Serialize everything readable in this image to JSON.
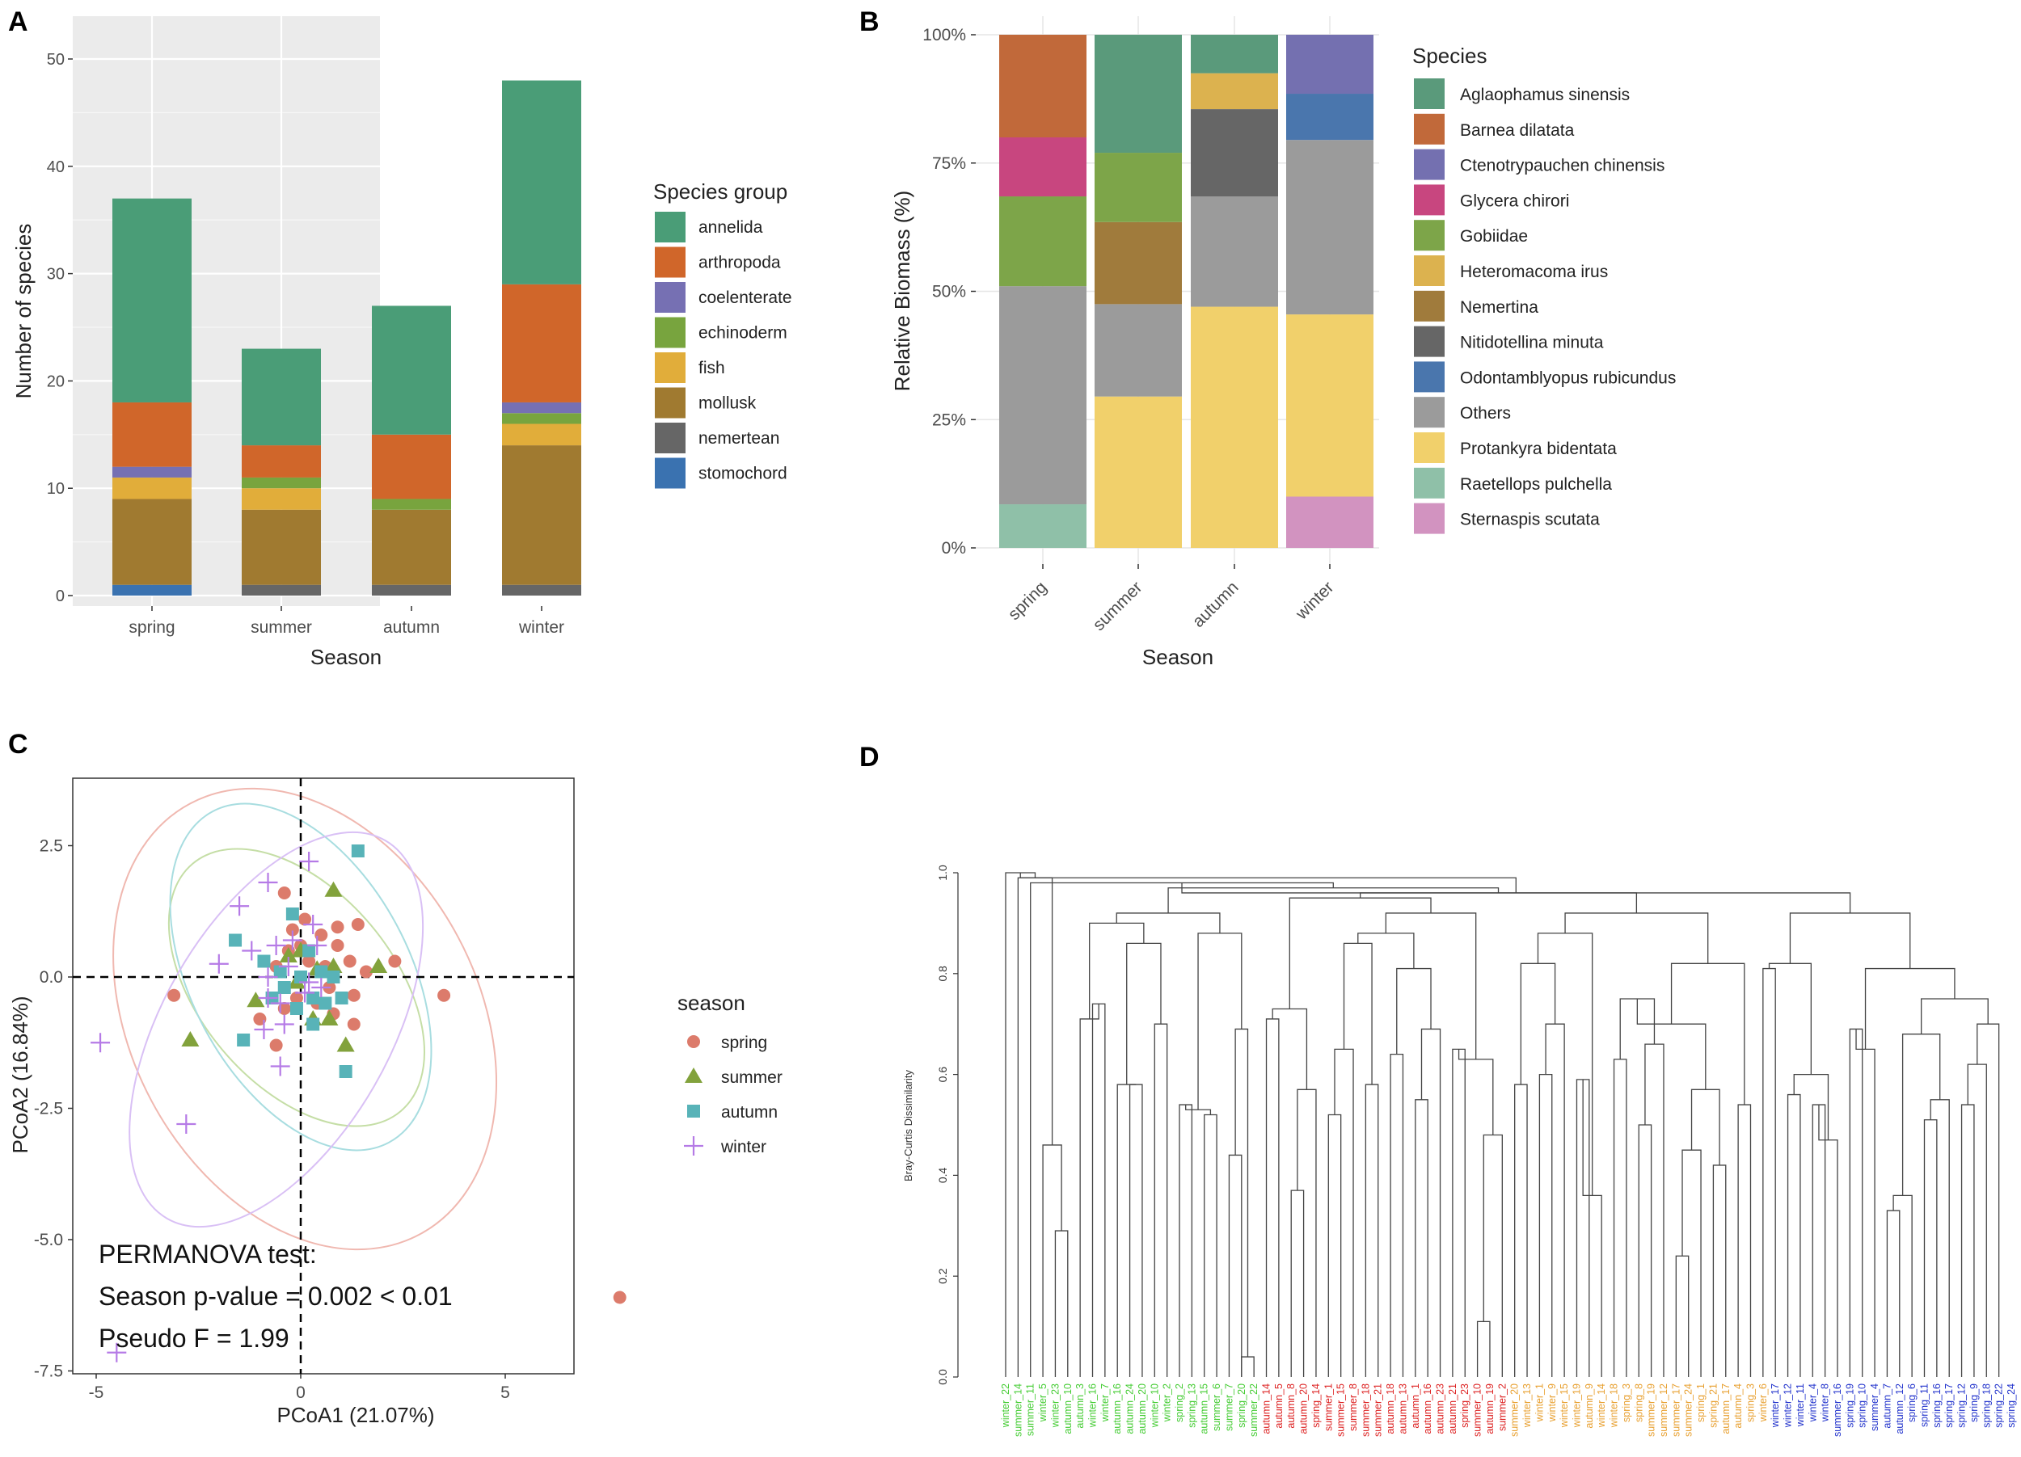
{
  "panel_labels": {
    "a": "A",
    "b": "B",
    "c": "C",
    "d": "D"
  },
  "chart_data": [
    {
      "id": "A",
      "type": "bar",
      "stacked": true,
      "xlabel": "Season",
      "ylabel": "Number of species",
      "ylim": [
        0,
        50
      ],
      "yticks": [
        0,
        10,
        20,
        30,
        40,
        50
      ],
      "categories": [
        "spring",
        "summer",
        "autumn",
        "winter"
      ],
      "legend_title": "Species group",
      "legend_position": "right",
      "series": [
        {
          "name": "stomochord",
          "color": "#3a72b0",
          "values": [
            1,
            0,
            0,
            0
          ]
        },
        {
          "name": "nemertean",
          "color": "#666666",
          "values": [
            0,
            1,
            1,
            1
          ]
        },
        {
          "name": "mollusk",
          "color": "#a07a30",
          "values": [
            8,
            7,
            7,
            13
          ]
        },
        {
          "name": "fish",
          "color": "#e1ad3a",
          "values": [
            2,
            2,
            0,
            2
          ]
        },
        {
          "name": "echinoderm",
          "color": "#78a43e",
          "values": [
            0,
            1,
            1,
            1
          ]
        },
        {
          "name": "coelenterate",
          "color": "#7670b3",
          "values": [
            1,
            0,
            0,
            1
          ]
        },
        {
          "name": "arthropoda",
          "color": "#d0662a",
          "values": [
            6,
            3,
            6,
            11
          ]
        },
        {
          "name": "annelida",
          "color": "#4a9d77",
          "values": [
            19,
            9,
            12,
            19
          ]
        }
      ],
      "legend_order": [
        "annelida",
        "arthropoda",
        "coelenterate",
        "echinoderm",
        "fish",
        "mollusk",
        "nemertean",
        "stomochord"
      ]
    },
    {
      "id": "B",
      "type": "bar",
      "stacked": true,
      "percent": true,
      "xlabel": "Season",
      "ylabel": "Relative Biomass (%)",
      "ytick_labels": [
        "0%",
        "25%",
        "50%",
        "75%",
        "100%"
      ],
      "categories": [
        "spring",
        "summer",
        "autumn",
        "winter"
      ],
      "legend_title": "Species",
      "legend_position": "right",
      "series": [
        {
          "name": "Raetellops pulchella",
          "color": "#8fc0a8",
          "values": [
            8.5,
            0,
            0,
            0
          ]
        },
        {
          "name": "Sternaspis scutata",
          "color": "#d293c0",
          "values": [
            0,
            0,
            0,
            10
          ]
        },
        {
          "name": "Protankyra bidentata",
          "color": "#f1d06b",
          "values": [
            0,
            29.5,
            47,
            35.5
          ]
        },
        {
          "name": "Others",
          "color": "#9b9b9b",
          "values": [
            42.5,
            18,
            21.5,
            34
          ]
        },
        {
          "name": "Nitidotellina minuta",
          "color": "#666666",
          "values": [
            0,
            0,
            17,
            0
          ]
        },
        {
          "name": "Odontamblyopus rubicundus",
          "color": "#4a76ad",
          "values": [
            0,
            0,
            0,
            9
          ]
        },
        {
          "name": "Nemertina",
          "color": "#a07b3c",
          "values": [
            0,
            16,
            0,
            0
          ]
        },
        {
          "name": "Gobiidae",
          "color": "#7da549",
          "values": [
            17.5,
            13.5,
            0,
            0
          ]
        },
        {
          "name": "Heteromacoma irus",
          "color": "#dcb24f",
          "values": [
            0,
            0,
            7,
            0
          ]
        },
        {
          "name": "Glycera chirori",
          "color": "#c8467f",
          "values": [
            11.5,
            0,
            0,
            0
          ]
        },
        {
          "name": "Ctenotrypauchen chinensis",
          "color": "#7470b0",
          "values": [
            0,
            0,
            0,
            11.5
          ]
        },
        {
          "name": "Barnea dilatata",
          "color": "#c1693a",
          "values": [
            20,
            0,
            0,
            0
          ]
        },
        {
          "name": "Aglaophamus sinensis",
          "color": "#5a9a7b",
          "values": [
            0,
            23,
            7.5,
            0
          ]
        }
      ],
      "legend_order": [
        "Aglaophamus sinensis",
        "Barnea dilatata",
        "Ctenotrypauchen chinensis",
        "Glycera chirori",
        "Gobiidae",
        "Heteromacoma irus",
        "Nemertina",
        "Nitidotellina minuta",
        "Odontamblyopus rubicundus",
        "Others",
        "Protankyra bidentata",
        "Raetellops pulchella",
        "Sternaspis scutata"
      ]
    },
    {
      "id": "C",
      "type": "scatter",
      "xlabel": "PCoA1 (21.07%)",
      "ylabel": "PCoA2 (16.84%)",
      "xlim": [
        -5.2,
        8.4
      ],
      "ylim": [
        -7.5,
        3.7
      ],
      "xticks": [
        -5,
        0,
        5
      ],
      "yticks": [
        -7.5,
        -5.0,
        -2.5,
        0.0,
        2.5
      ],
      "ytick_labels": [
        "-7.5",
        "-5.0",
        "-2.5",
        "0.0",
        "2.5"
      ],
      "legend_title": "season",
      "legend_position": "right",
      "annotation": [
        "PERMANOVA test:",
        "Season p-value = 0.002 < 0.01",
        "Pseudo F = 1.99"
      ],
      "series": [
        {
          "name": "spring",
          "marker": "circle",
          "color": "#dc7b6b",
          "points": [
            [
              7.8,
              -6.1
            ],
            [
              3.5,
              -0.35
            ],
            [
              -3.1,
              -0.35
            ],
            [
              2.3,
              0.3
            ],
            [
              -0.4,
              1.6
            ],
            [
              -1.0,
              -0.8
            ],
            [
              -0.6,
              -1.3
            ],
            [
              0.9,
              0.95
            ],
            [
              1.4,
              1.0
            ],
            [
              0.5,
              0.8
            ],
            [
              0.2,
              0.3
            ],
            [
              0.6,
              0.2
            ],
            [
              1.2,
              0.3
            ],
            [
              1.3,
              -0.35
            ],
            [
              1.3,
              -0.9
            ],
            [
              0.8,
              -0.7
            ],
            [
              0.4,
              -0.5
            ],
            [
              -0.1,
              -0.4
            ],
            [
              -0.4,
              -0.6
            ],
            [
              0.0,
              0.6
            ],
            [
              -0.3,
              0.5
            ],
            [
              0.9,
              0.6
            ],
            [
              -0.6,
              0.2
            ],
            [
              1.6,
              0.1
            ],
            [
              0.7,
              -0.2
            ],
            [
              -0.2,
              0.9
            ],
            [
              0.1,
              1.1
            ]
          ]
        },
        {
          "name": "summer",
          "marker": "triangle",
          "color": "#82a23c",
          "points": [
            [
              -2.7,
              -1.2
            ],
            [
              0.8,
              1.65
            ],
            [
              1.9,
              0.2
            ],
            [
              -1.1,
              -0.45
            ],
            [
              0.3,
              -0.8
            ],
            [
              0.7,
              -0.8
            ],
            [
              1.1,
              -1.3
            ],
            [
              0.8,
              0.2
            ],
            [
              0.0,
              0.5
            ],
            [
              0.4,
              0.15
            ],
            [
              -0.3,
              0.4
            ],
            [
              -0.1,
              -0.1
            ]
          ]
        },
        {
          "name": "autumn",
          "marker": "square",
          "color": "#58b3b8",
          "points": [
            [
              1.4,
              2.4
            ],
            [
              -1.4,
              -1.2
            ],
            [
              -1.6,
              0.7
            ],
            [
              1.1,
              -1.8
            ],
            [
              -0.2,
              1.2
            ],
            [
              0.2,
              0.5
            ],
            [
              -0.7,
              -0.4
            ],
            [
              0.0,
              0.0
            ],
            [
              0.3,
              -0.4
            ],
            [
              -0.5,
              0.1
            ],
            [
              0.6,
              -0.5
            ],
            [
              -0.9,
              0.3
            ],
            [
              0.3,
              -0.9
            ],
            [
              1.0,
              -0.4
            ],
            [
              0.5,
              0.1
            ],
            [
              -0.1,
              -0.6
            ],
            [
              -0.4,
              -0.2
            ],
            [
              0.8,
              0.0
            ]
          ]
        },
        {
          "name": "winter",
          "marker": "plus",
          "color": "#b57ae6",
          "points": [
            [
              -4.9,
              -1.25
            ],
            [
              -2.8,
              -2.8
            ],
            [
              -4.5,
              -7.15
            ],
            [
              -0.8,
              1.8
            ],
            [
              -1.5,
              1.35
            ],
            [
              0.2,
              2.2
            ],
            [
              -2.0,
              0.25
            ],
            [
              -1.2,
              0.5
            ],
            [
              -0.8,
              0.0
            ],
            [
              -0.5,
              -0.5
            ],
            [
              -0.9,
              -1.0
            ],
            [
              -0.5,
              -1.7
            ],
            [
              0.3,
              1.0
            ],
            [
              0.4,
              0.6
            ],
            [
              -0.2,
              0.7
            ],
            [
              0.1,
              -0.3
            ],
            [
              -0.4,
              -0.9
            ],
            [
              -0.3,
              0.2
            ],
            [
              0.2,
              -0.1
            ],
            [
              -0.6,
              0.6
            ],
            [
              0.5,
              -0.2
            ],
            [
              -0.8,
              -0.4
            ]
          ]
        }
      ]
    },
    {
      "id": "D",
      "type": "dendrogram",
      "ylabel": "Bray-Curtis Dissimilarity",
      "ylim": [
        0,
        1.0
      ],
      "yticks": [
        0.0,
        0.2,
        0.4,
        0.6,
        0.8,
        1.0
      ],
      "season_colors": {
        "winter": "#44cc33",
        "autumn": "#dd2222",
        "spring": "#e8a030",
        "summer": "#2233cc"
      },
      "leaves": [
        {
          "label": "winter_22",
          "season": "winter"
        },
        {
          "label": "summer_14",
          "season": "winter"
        },
        {
          "label": "summer_11",
          "season": "winter"
        },
        {
          "label": "winter_5",
          "season": "winter"
        },
        {
          "label": "winter_23",
          "season": "winter"
        },
        {
          "label": "autumn_10",
          "season": "winter"
        },
        {
          "label": "autumn_3",
          "season": "winter"
        },
        {
          "label": "winter_16",
          "season": "winter"
        },
        {
          "label": "winter_7",
          "season": "winter"
        },
        {
          "label": "autumn_16",
          "season": "winter"
        },
        {
          "label": "autumn_24",
          "season": "winter"
        },
        {
          "label": "autumn_20",
          "season": "winter"
        },
        {
          "label": "winter_10",
          "season": "winter"
        },
        {
          "label": "winter_2",
          "season": "winter"
        },
        {
          "label": "spring_2",
          "season": "winter"
        },
        {
          "label": "spring_13",
          "season": "winter"
        },
        {
          "label": "autumn_15",
          "season": "winter"
        },
        {
          "label": "summer_6",
          "season": "winter"
        },
        {
          "label": "summer_7",
          "season": "winter"
        },
        {
          "label": "spring_20",
          "season": "winter"
        },
        {
          "label": "summer_22",
          "season": "winter"
        },
        {
          "label": "autumn_14",
          "season": "autumn"
        },
        {
          "label": "autumn_5",
          "season": "autumn"
        },
        {
          "label": "autumn_8",
          "season": "autumn"
        },
        {
          "label": "autumn_20",
          "season": "autumn"
        },
        {
          "label": "spring_14",
          "season": "autumn"
        },
        {
          "label": "summer_1",
          "season": "autumn"
        },
        {
          "label": "summer_15",
          "season": "autumn"
        },
        {
          "label": "summer_8",
          "season": "autumn"
        },
        {
          "label": "summer_18",
          "season": "autumn"
        },
        {
          "label": "summer_21",
          "season": "autumn"
        },
        {
          "label": "autumn_18",
          "season": "autumn"
        },
        {
          "label": "autumn_13",
          "season": "autumn"
        },
        {
          "label": "autumn_1",
          "season": "autumn"
        },
        {
          "label": "autumn_16",
          "season": "autumn"
        },
        {
          "label": "autumn_23",
          "season": "autumn"
        },
        {
          "label": "autumn_21",
          "season": "autumn"
        },
        {
          "label": "spring_23",
          "season": "autumn"
        },
        {
          "label": "summer_10",
          "season": "autumn"
        },
        {
          "label": "autumn_19",
          "season": "autumn"
        },
        {
          "label": "summer_2",
          "season": "autumn"
        },
        {
          "label": "summer_20",
          "season": "spring"
        },
        {
          "label": "winter_13",
          "season": "spring"
        },
        {
          "label": "winter_1",
          "season": "spring"
        },
        {
          "label": "winter_9",
          "season": "spring"
        },
        {
          "label": "winter_15",
          "season": "spring"
        },
        {
          "label": "winter_19",
          "season": "spring"
        },
        {
          "label": "autumn_9",
          "season": "spring"
        },
        {
          "label": "winter_14",
          "season": "spring"
        },
        {
          "label": "winter_18",
          "season": "spring"
        },
        {
          "label": "spring_3",
          "season": "spring"
        },
        {
          "label": "spring_8",
          "season": "spring"
        },
        {
          "label": "summer_19",
          "season": "spring"
        },
        {
          "label": "summer_12",
          "season": "spring"
        },
        {
          "label": "summer_17",
          "season": "spring"
        },
        {
          "label": "summer_24",
          "season": "spring"
        },
        {
          "label": "spring_1",
          "season": "spring"
        },
        {
          "label": "spring_21",
          "season": "spring"
        },
        {
          "label": "autumn_17",
          "season": "spring"
        },
        {
          "label": "autumn_4",
          "season": "spring"
        },
        {
          "label": "spring_3",
          "season": "spring"
        },
        {
          "label": "winter_6",
          "season": "spring"
        },
        {
          "label": "winter_17",
          "season": "summer"
        },
        {
          "label": "winter_12",
          "season": "summer"
        },
        {
          "label": "winter_11",
          "season": "summer"
        },
        {
          "label": "winter_4",
          "season": "summer"
        },
        {
          "label": "winter_8",
          "season": "summer"
        },
        {
          "label": "summer_16",
          "season": "summer"
        },
        {
          "label": "spring_19",
          "season": "summer"
        },
        {
          "label": "spring_10",
          "season": "summer"
        },
        {
          "label": "summer_4",
          "season": "summer"
        },
        {
          "label": "autumn_7",
          "season": "summer"
        },
        {
          "label": "autumn_12",
          "season": "summer"
        },
        {
          "label": "spring_6",
          "season": "summer"
        },
        {
          "label": "spring_11",
          "season": "summer"
        },
        {
          "label": "spring_16",
          "season": "summer"
        },
        {
          "label": "spring_17",
          "season": "summer"
        },
        {
          "label": "spring_12",
          "season": "summer"
        },
        {
          "label": "spring_9",
          "season": "summer"
        },
        {
          "label": "spring_18",
          "season": "summer"
        },
        {
          "label": "spring_22",
          "season": "summer"
        },
        {
          "label": "spring_24",
          "season": "summer"
        }
      ]
    }
  ]
}
